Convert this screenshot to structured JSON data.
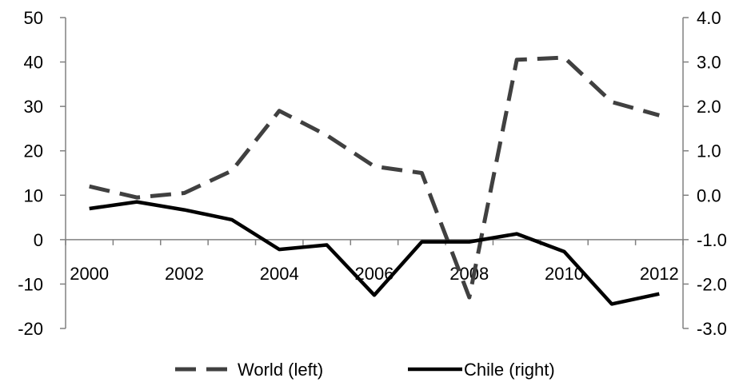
{
  "chart_data": {
    "type": "line",
    "x": [
      2000,
      2001,
      2002,
      2003,
      2004,
      2005,
      2006,
      2007,
      2008,
      2009,
      2010,
      2011,
      2012
    ],
    "x_tick_labels": [
      "2000",
      "2002",
      "2004",
      "2006",
      "2008",
      "2010",
      "2012"
    ],
    "y_left": {
      "ylim": [
        -20,
        50
      ],
      "tick_labels": [
        "50",
        "40",
        "30",
        "20",
        "10",
        "0",
        "-10",
        "-20"
      ]
    },
    "y_right": {
      "ylim": [
        -3.0,
        4.0
      ],
      "tick_labels": [
        "4.0",
        "3.0",
        "2.0",
        "1.0",
        "0.0",
        "-1.0",
        "-2.0",
        "-3.0"
      ]
    },
    "series": [
      {
        "name": "World (left)",
        "axis": "left",
        "style": "dashed",
        "values": [
          12,
          9.5,
          10.5,
          15.5,
          29,
          23.5,
          16.5,
          15,
          -13,
          40.5,
          41,
          31,
          28
        ]
      },
      {
        "name": "Chile (right)",
        "axis": "right",
        "style": "solid",
        "values": [
          -0.3,
          -0.15,
          -0.33,
          -0.55,
          -1.22,
          -1.12,
          -2.25,
          -1.05,
          -1.05,
          -0.87,
          -1.27,
          -2.45,
          -2.22
        ]
      }
    ],
    "legend": {
      "position": "bottom",
      "items": [
        "World (left)",
        "Chile (right)"
      ]
    },
    "grid": false,
    "colors": {
      "world": "#404040",
      "chile": "#000000",
      "axis": "#808080"
    }
  }
}
